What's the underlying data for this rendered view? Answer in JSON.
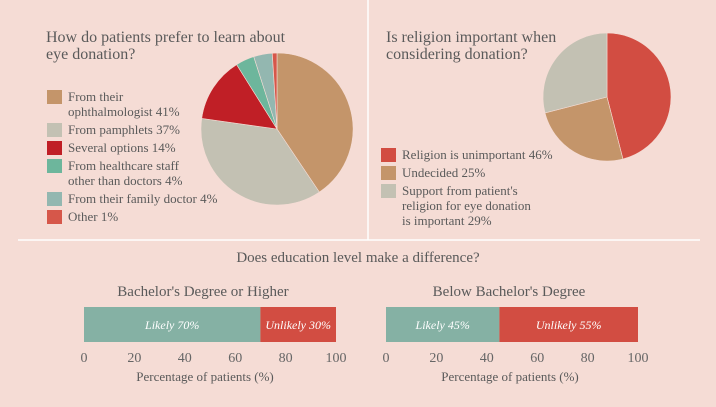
{
  "colors": {
    "background": "#f5dcd5",
    "divider": "#ffffff",
    "text": "#5a5a5a",
    "tick_text": "#666666"
  },
  "chart_data": [
    {
      "type": "pie",
      "title_lines": [
        "How do patients prefer to learn about",
        "eye donation?"
      ],
      "legend_position": "left",
      "slices": [
        {
          "label_lines": [
            "From their",
            "ophthalmologist 41%"
          ],
          "value": 41,
          "color": "#c4956a"
        },
        {
          "label_lines": [
            "From pamphlets 37%"
          ],
          "value": 37,
          "color": "#c3c1b3"
        },
        {
          "label_lines": [
            "Several options 14%"
          ],
          "value": 14,
          "color": "#c01f26"
        },
        {
          "label_lines": [
            "From healthcare staff",
            "other than doctors 4%"
          ],
          "value": 4,
          "color": "#6db69c"
        },
        {
          "label_lines": [
            "From their family doctor 4%"
          ],
          "value": 4,
          "color": "#93b7b0"
        },
        {
          "label_lines": [
            "Other 1%"
          ],
          "value": 1,
          "color": "#d6574a"
        }
      ]
    },
    {
      "type": "pie",
      "title_lines": [
        "Is religion important when",
        "considering donation?"
      ],
      "legend_position": "bottom-left",
      "slices": [
        {
          "label_lines": [
            "Religion is unimportant 46%"
          ],
          "value": 46,
          "color": "#d24d42"
        },
        {
          "label_lines": [
            "Undecided 25%"
          ],
          "value": 25,
          "color": "#c4956a"
        },
        {
          "label_lines": [
            "Support from patient's",
            "religion for eye donation",
            "is important 29%"
          ],
          "value": 29,
          "color": "#c3c1b3"
        }
      ]
    },
    {
      "type": "bar",
      "orientation": "horizontal-stacked",
      "section_title": "Does education level make a difference?",
      "title": "Bachelor's Degree or Higher",
      "xlabel": "Percentage of patients (%)",
      "xlim": [
        0,
        100
      ],
      "ticks": [
        "0",
        "20",
        "40",
        "60",
        "80",
        "100"
      ],
      "segments": [
        {
          "label": "Likely 70%",
          "value": 70,
          "color": "#85b1a4"
        },
        {
          "label": "Unlikely 30%",
          "value": 30,
          "color": "#d24d42"
        }
      ]
    },
    {
      "type": "bar",
      "orientation": "horizontal-stacked",
      "title": "Below Bachelor's Degree",
      "xlabel": "Percentage of patients (%)",
      "xlim": [
        0,
        100
      ],
      "ticks": [
        "0",
        "20",
        "40",
        "60",
        "80",
        "100"
      ],
      "segments": [
        {
          "label": "Likely 45%",
          "value": 45,
          "color": "#85b1a4"
        },
        {
          "label": "Unlikely 55%",
          "value": 55,
          "color": "#d24d42"
        }
      ]
    }
  ]
}
